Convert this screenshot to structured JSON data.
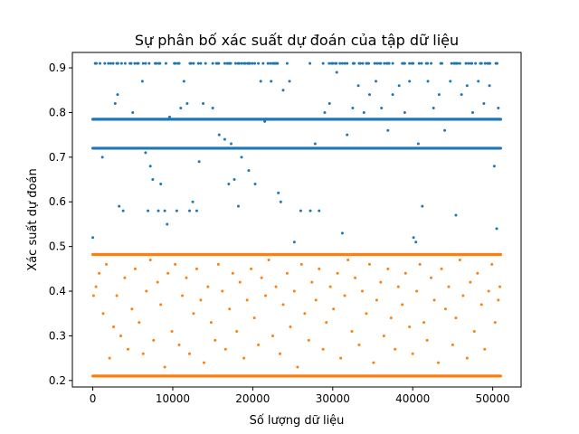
{
  "chart_data": {
    "type": "scatter",
    "title": "Sự phân bố xác suất dự đoán của tập dữ liệu",
    "xlabel": "Số lượng dữ liệu",
    "ylabel": "Xác suất dự đoán",
    "xlim": [
      -2550,
      53550
    ],
    "ylim": [
      0.1855,
      0.9345
    ],
    "x_ticks": [
      0,
      10000,
      20000,
      30000,
      40000,
      50000
    ],
    "y_ticks": [
      0.2,
      0.3,
      0.4,
      0.5,
      0.6,
      0.7,
      0.8,
      0.9
    ],
    "grid": false,
    "legend": "none",
    "n_points": 51000,
    "series": [
      {
        "color": "#1f77b4",
        "dense_bands": [
          {
            "y": 0.91,
            "x_start": 0,
            "x_end": 51000,
            "fill": 0.35
          },
          {
            "y": 0.785,
            "x_start": 0,
            "x_end": 51000,
            "fill": 1.0
          },
          {
            "y": 0.72,
            "x_start": 0,
            "x_end": 51000,
            "fill": 1.0
          }
        ],
        "points": [
          {
            "x": 0,
            "y": 0.52
          },
          {
            "x": 1200,
            "y": 0.7
          },
          {
            "x": 2800,
            "y": 0.82
          },
          {
            "x": 3100,
            "y": 0.84
          },
          {
            "x": 3300,
            "y": 0.59
          },
          {
            "x": 3800,
            "y": 0.58
          },
          {
            "x": 5000,
            "y": 0.8
          },
          {
            "x": 6200,
            "y": 0.87
          },
          {
            "x": 6600,
            "y": 0.71
          },
          {
            "x": 6900,
            "y": 0.58
          },
          {
            "x": 7200,
            "y": 0.68
          },
          {
            "x": 7500,
            "y": 0.65
          },
          {
            "x": 8200,
            "y": 0.58
          },
          {
            "x": 8500,
            "y": 0.64
          },
          {
            "x": 9000,
            "y": 0.58
          },
          {
            "x": 9300,
            "y": 0.55
          },
          {
            "x": 9600,
            "y": 0.79
          },
          {
            "x": 10500,
            "y": 0.58
          },
          {
            "x": 11000,
            "y": 0.81
          },
          {
            "x": 11400,
            "y": 0.87
          },
          {
            "x": 11800,
            "y": 0.82
          },
          {
            "x": 12100,
            "y": 0.58
          },
          {
            "x": 12500,
            "y": 0.6
          },
          {
            "x": 13000,
            "y": 0.58
          },
          {
            "x": 13300,
            "y": 0.69
          },
          {
            "x": 13800,
            "y": 0.82
          },
          {
            "x": 15000,
            "y": 0.81
          },
          {
            "x": 15800,
            "y": 0.75
          },
          {
            "x": 16500,
            "y": 0.74
          },
          {
            "x": 17000,
            "y": 0.64
          },
          {
            "x": 17300,
            "y": 0.73
          },
          {
            "x": 17700,
            "y": 0.65
          },
          {
            "x": 18200,
            "y": 0.59
          },
          {
            "x": 18600,
            "y": 0.7
          },
          {
            "x": 19500,
            "y": 0.67
          },
          {
            "x": 20300,
            "y": 0.64
          },
          {
            "x": 21000,
            "y": 0.87
          },
          {
            "x": 21500,
            "y": 0.78
          },
          {
            "x": 22300,
            "y": 0.87
          },
          {
            "x": 23200,
            "y": 0.62
          },
          {
            "x": 23500,
            "y": 0.6
          },
          {
            "x": 23800,
            "y": 0.85
          },
          {
            "x": 24600,
            "y": 0.87
          },
          {
            "x": 25200,
            "y": 0.51
          },
          {
            "x": 26000,
            "y": 0.58
          },
          {
            "x": 27200,
            "y": 0.58
          },
          {
            "x": 27800,
            "y": 0.73
          },
          {
            "x": 28300,
            "y": 0.58
          },
          {
            "x": 29000,
            "y": 0.8
          },
          {
            "x": 29600,
            "y": 0.82
          },
          {
            "x": 30500,
            "y": 0.89
          },
          {
            "x": 31200,
            "y": 0.53
          },
          {
            "x": 31800,
            "y": 0.75
          },
          {
            "x": 32500,
            "y": 0.81
          },
          {
            "x": 33200,
            "y": 0.86
          },
          {
            "x": 33900,
            "y": 0.8
          },
          {
            "x": 34600,
            "y": 0.84
          },
          {
            "x": 35400,
            "y": 0.87
          },
          {
            "x": 36100,
            "y": 0.81
          },
          {
            "x": 36900,
            "y": 0.76
          },
          {
            "x": 37500,
            "y": 0.84
          },
          {
            "x": 38300,
            "y": 0.86
          },
          {
            "x": 39000,
            "y": 0.8
          },
          {
            "x": 39600,
            "y": 0.87
          },
          {
            "x": 40100,
            "y": 0.52
          },
          {
            "x": 40400,
            "y": 0.51
          },
          {
            "x": 40700,
            "y": 0.73
          },
          {
            "x": 41200,
            "y": 0.59
          },
          {
            "x": 41900,
            "y": 0.87
          },
          {
            "x": 42600,
            "y": 0.81
          },
          {
            "x": 43300,
            "y": 0.84
          },
          {
            "x": 44000,
            "y": 0.76
          },
          {
            "x": 44700,
            "y": 0.87
          },
          {
            "x": 45400,
            "y": 0.57
          },
          {
            "x": 46100,
            "y": 0.84
          },
          {
            "x": 46800,
            "y": 0.86
          },
          {
            "x": 47500,
            "y": 0.8
          },
          {
            "x": 48200,
            "y": 0.87
          },
          {
            "x": 48900,
            "y": 0.82
          },
          {
            "x": 49600,
            "y": 0.86
          },
          {
            "x": 50200,
            "y": 0.68
          },
          {
            "x": 50500,
            "y": 0.54
          },
          {
            "x": 50700,
            "y": 0.81
          }
        ]
      },
      {
        "color": "#ff7f0e",
        "dense_bands": [
          {
            "y": 0.482,
            "x_start": 0,
            "x_end": 51000,
            "fill": 1.0
          },
          {
            "y": 0.21,
            "x_start": 0,
            "x_end": 51000,
            "fill": 1.0
          }
        ],
        "points": [
          {
            "x": 100,
            "y": 0.39
          },
          {
            "x": 400,
            "y": 0.41
          },
          {
            "x": 800,
            "y": 0.44
          },
          {
            "x": 1300,
            "y": 0.35
          },
          {
            "x": 1700,
            "y": 0.46
          },
          {
            "x": 2100,
            "y": 0.25
          },
          {
            "x": 2600,
            "y": 0.32
          },
          {
            "x": 3000,
            "y": 0.39
          },
          {
            "x": 3500,
            "y": 0.3
          },
          {
            "x": 4000,
            "y": 0.43
          },
          {
            "x": 4400,
            "y": 0.27
          },
          {
            "x": 4900,
            "y": 0.36
          },
          {
            "x": 5300,
            "y": 0.45
          },
          {
            "x": 5800,
            "y": 0.33
          },
          {
            "x": 6300,
            "y": 0.26
          },
          {
            "x": 6700,
            "y": 0.4
          },
          {
            "x": 7200,
            "y": 0.47
          },
          {
            "x": 7600,
            "y": 0.29
          },
          {
            "x": 8100,
            "y": 0.42
          },
          {
            "x": 8500,
            "y": 0.37
          },
          {
            "x": 9000,
            "y": 0.23
          },
          {
            "x": 9400,
            "y": 0.44
          },
          {
            "x": 9900,
            "y": 0.31
          },
          {
            "x": 10300,
            "y": 0.46
          },
          {
            "x": 10800,
            "y": 0.28
          },
          {
            "x": 11200,
            "y": 0.39
          },
          {
            "x": 11700,
            "y": 0.43
          },
          {
            "x": 12100,
            "y": 0.26
          },
          {
            "x": 12600,
            "y": 0.35
          },
          {
            "x": 13000,
            "y": 0.45
          },
          {
            "x": 13500,
            "y": 0.38
          },
          {
            "x": 13900,
            "y": 0.24
          },
          {
            "x": 14400,
            "y": 0.41
          },
          {
            "x": 14800,
            "y": 0.33
          },
          {
            "x": 15300,
            "y": 0.29
          },
          {
            "x": 15700,
            "y": 0.46
          },
          {
            "x": 16200,
            "y": 0.4
          },
          {
            "x": 16600,
            "y": 0.27
          },
          {
            "x": 17100,
            "y": 0.36
          },
          {
            "x": 17500,
            "y": 0.44
          },
          {
            "x": 18000,
            "y": 0.31
          },
          {
            "x": 18400,
            "y": 0.42
          },
          {
            "x": 18900,
            "y": 0.25
          },
          {
            "x": 19300,
            "y": 0.38
          },
          {
            "x": 19800,
            "y": 0.45
          },
          {
            "x": 20200,
            "y": 0.34
          },
          {
            "x": 20700,
            "y": 0.28
          },
          {
            "x": 21100,
            "y": 0.43
          },
          {
            "x": 21600,
            "y": 0.39
          },
          {
            "x": 22000,
            "y": 0.47
          },
          {
            "x": 22500,
            "y": 0.3
          },
          {
            "x": 22900,
            "y": 0.41
          },
          {
            "x": 23400,
            "y": 0.26
          },
          {
            "x": 23800,
            "y": 0.37
          },
          {
            "x": 24300,
            "y": 0.44
          },
          {
            "x": 24700,
            "y": 0.32
          },
          {
            "x": 25200,
            "y": 0.4
          },
          {
            "x": 25600,
            "y": 0.23
          },
          {
            "x": 26100,
            "y": 0.46
          },
          {
            "x": 26500,
            "y": 0.35
          },
          {
            "x": 27000,
            "y": 0.29
          },
          {
            "x": 27400,
            "y": 0.42
          },
          {
            "x": 27900,
            "y": 0.38
          },
          {
            "x": 28300,
            "y": 0.45
          },
          {
            "x": 28800,
            "y": 0.27
          },
          {
            "x": 29200,
            "y": 0.33
          },
          {
            "x": 29700,
            "y": 0.41
          },
          {
            "x": 30100,
            "y": 0.36
          },
          {
            "x": 30600,
            "y": 0.44
          },
          {
            "x": 31000,
            "y": 0.25
          },
          {
            "x": 31500,
            "y": 0.39
          },
          {
            "x": 31900,
            "y": 0.47
          },
          {
            "x": 32400,
            "y": 0.31
          },
          {
            "x": 32800,
            "y": 0.43
          },
          {
            "x": 33300,
            "y": 0.28
          },
          {
            "x": 33700,
            "y": 0.4
          },
          {
            "x": 34200,
            "y": 0.35
          },
          {
            "x": 34600,
            "y": 0.46
          },
          {
            "x": 35100,
            "y": 0.24
          },
          {
            "x": 35500,
            "y": 0.38
          },
          {
            "x": 36000,
            "y": 0.42
          },
          {
            "x": 36400,
            "y": 0.3
          },
          {
            "x": 36900,
            "y": 0.45
          },
          {
            "x": 37300,
            "y": 0.34
          },
          {
            "x": 37800,
            "y": 0.27
          },
          {
            "x": 38200,
            "y": 0.41
          },
          {
            "x": 38700,
            "y": 0.37
          },
          {
            "x": 39100,
            "y": 0.44
          },
          {
            "x": 39600,
            "y": 0.32
          },
          {
            "x": 40000,
            "y": 0.26
          },
          {
            "x": 40500,
            "y": 0.4
          },
          {
            "x": 40900,
            "y": 0.46
          },
          {
            "x": 41400,
            "y": 0.33
          },
          {
            "x": 41800,
            "y": 0.29
          },
          {
            "x": 42300,
            "y": 0.43
          },
          {
            "x": 42700,
            "y": 0.38
          },
          {
            "x": 43200,
            "y": 0.24
          },
          {
            "x": 43600,
            "y": 0.45
          },
          {
            "x": 44100,
            "y": 0.36
          },
          {
            "x": 44500,
            "y": 0.41
          },
          {
            "x": 45000,
            "y": 0.28
          },
          {
            "x": 45400,
            "y": 0.34
          },
          {
            "x": 45900,
            "y": 0.47
          },
          {
            "x": 46300,
            "y": 0.39
          },
          {
            "x": 46800,
            "y": 0.25
          },
          {
            "x": 47200,
            "y": 0.42
          },
          {
            "x": 47700,
            "y": 0.31
          },
          {
            "x": 48100,
            "y": 0.44
          },
          {
            "x": 48600,
            "y": 0.37
          },
          {
            "x": 49000,
            "y": 0.27
          },
          {
            "x": 49500,
            "y": 0.4
          },
          {
            "x": 49900,
            "y": 0.46
          },
          {
            "x": 50300,
            "y": 0.33
          },
          {
            "x": 50700,
            "y": 0.38
          },
          {
            "x": 50900,
            "y": 0.41
          }
        ]
      }
    ]
  }
}
